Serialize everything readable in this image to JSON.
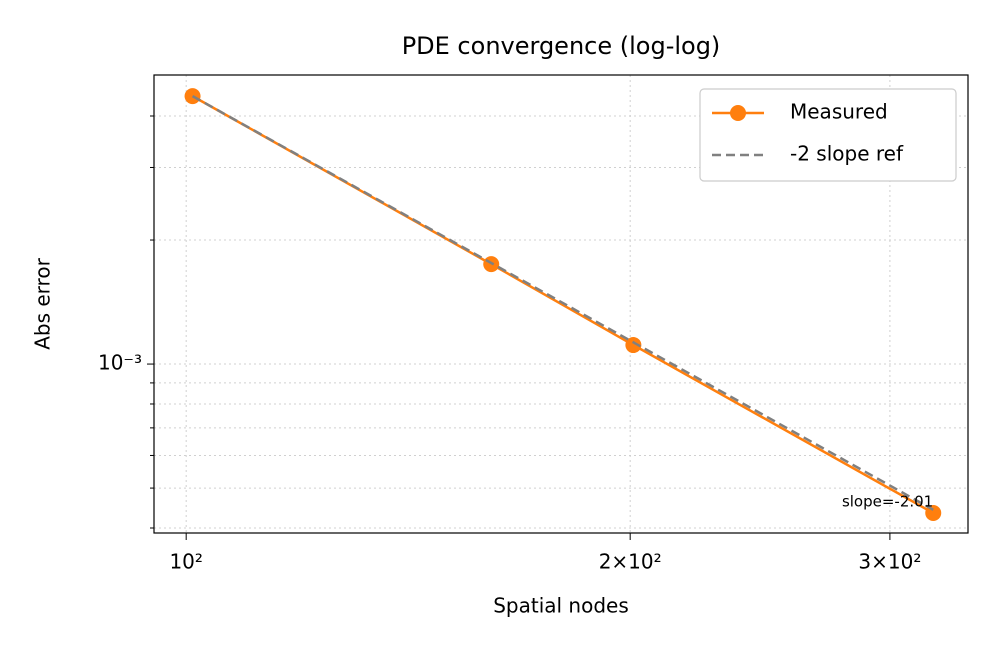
{
  "chart_data": {
    "type": "line",
    "title": "PDE convergence (log-log)",
    "x_label": "Spatial nodes",
    "y_label": "Abs error",
    "log_x": true,
    "log_y": true,
    "grid": true,
    "legend": "upper right",
    "xlim": [
      95.1,
      338.9
    ],
    "ylim": [
      0.000389,
      0.00503
    ],
    "xticks": [
      {
        "value": 100,
        "label": "10²"
      },
      {
        "value": 200,
        "label": "2×10²"
      },
      {
        "value": 300,
        "label": "3×10²"
      }
    ],
    "yticks": [
      {
        "value": 0.001,
        "label": "10⁻³"
      }
    ],
    "yminor": [
      0.0004,
      0.0005,
      0.0006,
      0.0007,
      0.0008,
      0.0009,
      0.002,
      0.003,
      0.004
    ],
    "x": [
      101,
      161,
      201,
      321
    ],
    "series": [
      {
        "name": "Measured",
        "color": "#ff7f0e",
        "style": "solid",
        "markers": true,
        "values": [
          0.00447,
          0.001748,
          0.001112,
          0.000435
        ]
      },
      {
        "name": "-2 slope ref",
        "color": "#808080",
        "style": "dashed",
        "markers": false,
        "values": [
          0.00447,
          0.001759,
          0.001129,
          0.000443
        ]
      }
    ],
    "annotation": "slope=-2.01"
  }
}
